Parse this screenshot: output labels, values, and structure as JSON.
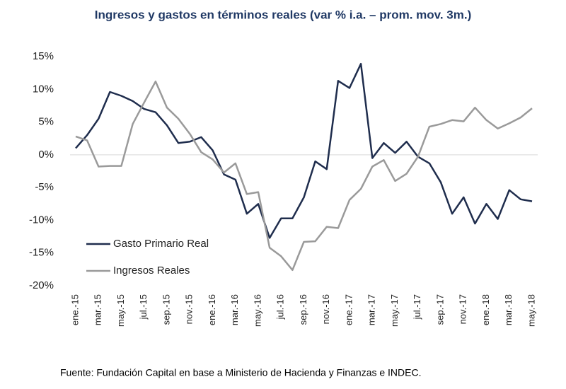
{
  "chart_data": {
    "type": "line",
    "title": "Ingresos y gastos en términos reales (var % i.a. – prom. mov. 3m.)",
    "source": "Fuente: Fundación Capital en base a Ministerio de Hacienda y Finanzas e INDEC.",
    "categories": [
      "ene.-15",
      null,
      "mar.-15",
      null,
      "may.-15",
      null,
      "jul.-15",
      null,
      "sep.-15",
      null,
      "nov.-15",
      null,
      "ene.-16",
      null,
      "mar.-16",
      null,
      "may.-16",
      null,
      "jul.-16",
      null,
      "sep.-16",
      null,
      "nov.-16",
      null,
      "ene.-17",
      null,
      "mar.-17",
      null,
      "may.-17",
      null,
      "jul.-17",
      null,
      "sep.-17",
      null,
      "nov.-17",
      null,
      "ene.-18",
      null,
      "mar.-18",
      null,
      "may.-18"
    ],
    "series": [
      {
        "name": "Gasto Primario Real",
        "color": "#1f2d4d",
        "values": [
          1,
          3,
          5.5,
          9.6,
          9,
          8.2,
          7,
          6.5,
          4.5,
          1.8,
          2,
          2.7,
          0.7,
          -3,
          -3.8,
          -9,
          -7.5,
          -12.7,
          -9.7,
          -9.7,
          -6.5,
          -1,
          -2.2,
          11.3,
          10.2,
          13.9,
          -0.5,
          1.8,
          0.3,
          2,
          -0.3,
          -1.3,
          -4.2,
          -9,
          -6.5,
          -10.5,
          -7.5,
          -9.8,
          -5.4,
          -6.8,
          -7.1
        ]
      },
      {
        "name": "Ingresos Reales",
        "color": "#9a9a9a",
        "values": [
          2.8,
          2.2,
          -1.8,
          -1.7,
          -1.7,
          4.7,
          8,
          11.2,
          7.2,
          5.5,
          3.2,
          0.4,
          -0.7,
          -2.7,
          -1.3,
          -6,
          -5.7,
          -14.2,
          -15.5,
          -17.6,
          -13.3,
          -13.2,
          -11,
          -11.2,
          -6.9,
          -5.2,
          -1.8,
          -0.8,
          -4,
          -2.9,
          -0.3,
          4.3,
          4.7,
          5.3,
          5.1,
          7.2,
          5.3,
          4,
          4.8,
          5.7,
          7.1
        ]
      }
    ],
    "ylim": [
      -20,
      15
    ],
    "yticks": [
      {
        "value": -20,
        "label": "-20%"
      },
      {
        "value": -15,
        "label": "-15%"
      },
      {
        "value": -10,
        "label": "-10%"
      },
      {
        "value": -5,
        "label": "-5%"
      },
      {
        "value": 0,
        "label": "0%"
      },
      {
        "value": 5,
        "label": "5%"
      },
      {
        "value": 10,
        "label": "10%"
      },
      {
        "value": 15,
        "label": "15%"
      }
    ],
    "legend": "lower left"
  }
}
